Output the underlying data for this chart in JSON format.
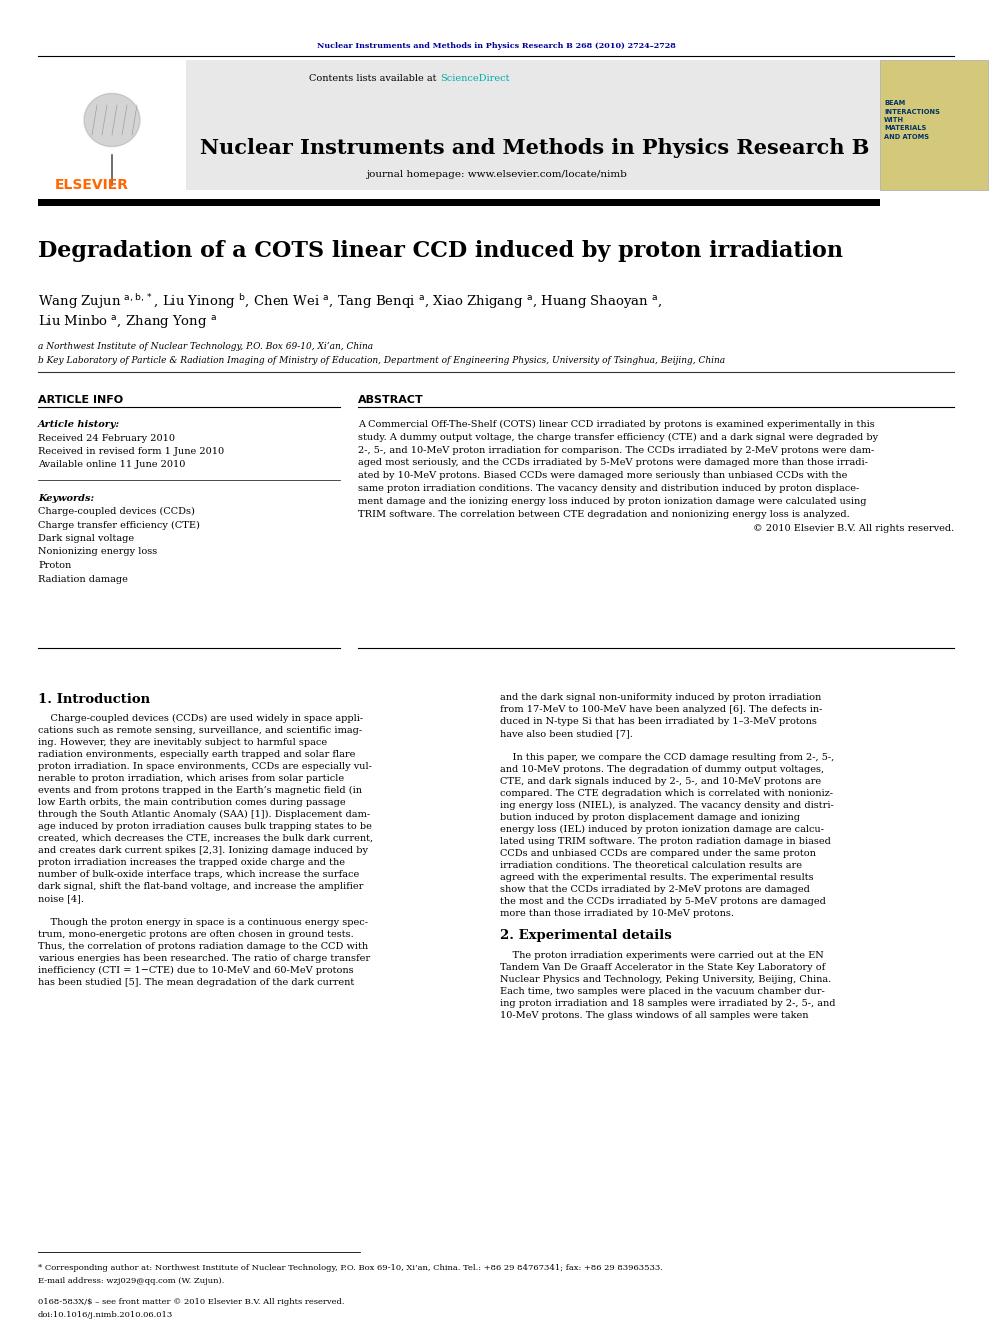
{
  "page_width": 9.92,
  "page_height": 13.23,
  "bg_color": "#ffffff",
  "top_journal_line": "Nuclear Instruments and Methods in Physics Research B 268 (2010) 2724–2728",
  "journal_title": "Nuclear Instruments and Methods in Physics Research B",
  "journal_homepage": "journal homepage: www.elsevier.com/locate/nimb",
  "paper_title": "Degradation of a COTS linear CCD induced by proton irradiation",
  "affil_a": "a Northwest Institute of Nuclear Technology, P.O. Box 69-10, Xi’an, China",
  "affil_b": "b Key Laboratory of Particle & Radiation Imaging of Ministry of Education, Department of Engineering Physics, University of Tsinghua, Beijing, China",
  "article_info_header": "ARTICLE INFO",
  "abstract_header": "ABSTRACT",
  "article_history_label": "Article history:",
  "received1": "Received 24 February 2010",
  "received2": "Received in revised form 1 June 2010",
  "available": "Available online 11 June 2010",
  "keywords_label": "Keywords:",
  "keywords": [
    "Charge-coupled devices (CCDs)",
    "Charge transfer efficiency (CTE)",
    "Dark signal voltage",
    "Nonionizing energy loss",
    "Proton",
    "Radiation damage"
  ],
  "abstract_lines": [
    "A Commercial Off-The-Shelf (COTS) linear CCD irradiated by protons is examined experimentally in this",
    "study. A dummy output voltage, the charge transfer efficiency (CTE) and a dark signal were degraded by",
    "2-, 5-, and 10-MeV proton irradiation for comparison. The CCDs irradiated by 2-MeV protons were dam-",
    "aged most seriously, and the CCDs irradiated by 5-MeV protons were damaged more than those irradi-",
    "ated by 10-MeV protons. Biased CCDs were damaged more seriously than unbiased CCDs with the",
    "same proton irradiation conditions. The vacancy density and distribution induced by proton displace-",
    "ment damage and the ionizing energy loss induced by proton ionization damage were calculated using",
    "TRIM software. The correlation between CTE degradation and nonionizing energy loss is analyzed."
  ],
  "abstract_copyright": "© 2010 Elsevier B.V. All rights reserved.",
  "section1_title": "1. Introduction",
  "col1_lines": [
    "    Charge-coupled devices (CCDs) are used widely in space appli-",
    "cations such as remote sensing, surveillance, and scientific imag-",
    "ing. However, they are inevitably subject to harmful space",
    "radiation environments, especially earth trapped and solar flare",
    "proton irradiation. In space environments, CCDs are especially vul-",
    "nerable to proton irradiation, which arises from solar particle",
    "events and from protons trapped in the Earth’s magnetic field (in",
    "low Earth orbits, the main contribution comes during passage",
    "through the South Atlantic Anomaly (SAA) [1]). Displacement dam-",
    "age induced by proton irradiation causes bulk trapping states to be",
    "created, which decreases the CTE, increases the bulk dark current,",
    "and creates dark current spikes [2,3]. Ionizing damage induced by",
    "proton irradiation increases the trapped oxide charge and the",
    "number of bulk-oxide interface traps, which increase the surface",
    "dark signal, shift the flat-band voltage, and increase the amplifier",
    "noise [4].",
    "",
    "    Though the proton energy in space is a continuous energy spec-",
    "trum, mono-energetic protons are often chosen in ground tests.",
    "Thus, the correlation of protons radiation damage to the CCD with",
    "various energies has been researched. The ratio of charge transfer",
    "inefficiency (CTI = 1−CTE) due to 10-MeV and 60-MeV protons",
    "has been studied [5]. The mean degradation of the dark current"
  ],
  "col2_lines": [
    "and the dark signal non-uniformity induced by proton irradiation",
    "from 17-MeV to 100-MeV have been analyzed [6]. The defects in-",
    "duced in N-type Si that has been irradiated by 1–3-MeV protons",
    "have also been studied [7].",
    "",
    "    In this paper, we compare the CCD damage resulting from 2-, 5-,",
    "and 10-MeV protons. The degradation of dummy output voltages,",
    "CTE, and dark signals induced by 2-, 5-, and 10-MeV protons are",
    "compared. The CTE degradation which is correlated with nonioniz-",
    "ing energy loss (NIEL), is analyzed. The vacancy density and distri-",
    "bution induced by proton displacement damage and ionizing",
    "energy loss (IEL) induced by proton ionization damage are calcu-",
    "lated using TRIM software. The proton radiation damage in biased",
    "CCDs and unbiased CCDs are compared under the same proton",
    "irradiation conditions. The theoretical calculation results are",
    "agreed with the experimental results. The experimental results",
    "show that the CCDs irradiated by 2-MeV protons are damaged",
    "the most and the CCDs irradiated by 5-MeV protons are damaged",
    "more than those irradiated by 10-MeV protons."
  ],
  "section2_title": "2. Experimental details",
  "col2_sec2_lines": [
    "    The proton irradiation experiments were carried out at the EN",
    "Tandem Van De Graaff Accelerator in the State Key Laboratory of",
    "Nuclear Physics and Technology, Peking University, Beijing, China.",
    "Each time, two samples were placed in the vacuum chamber dur-",
    "ing proton irradiation and 18 samples were irradiated by 2-, 5-, and",
    "10-MeV protons. The glass windows of all samples were taken"
  ],
  "footnote_star": "* Corresponding author at: Northwest Institute of Nuclear Technology, P.O. Box 69-10, Xi’an, China. Tel.: +86 29 84767341; fax: +86 29 83963533.",
  "footnote_email": "E-mail address: wzj029@qq.com (W. Zujun).",
  "issn_line": "0168-583X/$ – see front matter © 2010 Elsevier B.V. All rights reserved.",
  "doi_line": "doi:10.1016/j.nimb.2010.06.013",
  "sciencedirect_color": "#00aaaa",
  "elsevier_color": "#ff6600",
  "link_color": "#000099",
  "gray_bg": "#e8e8e8",
  "beam_bg": "#d4c87a"
}
